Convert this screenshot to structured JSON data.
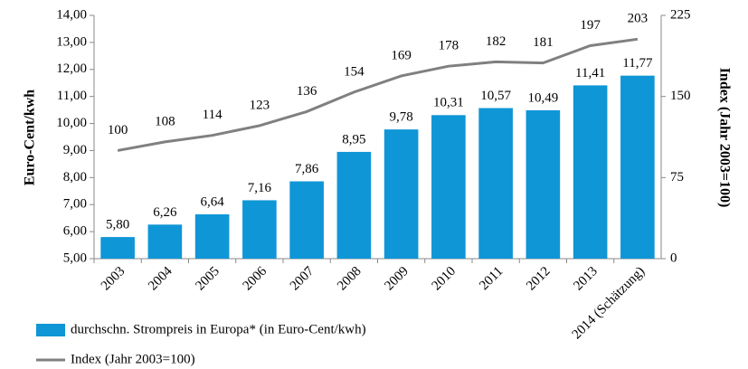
{
  "chart_data": {
    "type": "bar",
    "ylabel": "Euro-Cent/kwh",
    "y2label": "Index (Jahr 2003=100)",
    "categories": [
      "2003",
      "2004",
      "2005",
      "2006",
      "2007",
      "2008",
      "2009",
      "2010",
      "2011",
      "2012",
      "2013",
      "2014 (Schätzung)"
    ],
    "ylim": [
      5,
      14
    ],
    "yticks": [
      {
        "value": 5,
        "label": "5,00"
      },
      {
        "value": 6,
        "label": "6,00"
      },
      {
        "value": 7,
        "label": "7,00"
      },
      {
        "value": 8,
        "label": "8,00"
      },
      {
        "value": 9,
        "label": "9,00"
      },
      {
        "value": 10,
        "label": "10,00"
      },
      {
        "value": 11,
        "label": "11,00"
      },
      {
        "value": 12,
        "label": "12,00"
      },
      {
        "value": 13,
        "label": "13,00"
      },
      {
        "value": 14,
        "label": "14,00"
      }
    ],
    "y2lim": [
      0,
      225
    ],
    "y2ticks": [
      0,
      75,
      150,
      225
    ],
    "series": [
      {
        "name": "durchschn. Strompreis in Europa* (in Euro-Cent/kwh)",
        "type": "bar",
        "color": "#0f96d6",
        "values": [
          5.8,
          6.26,
          6.64,
          7.16,
          7.86,
          8.95,
          9.78,
          10.31,
          10.57,
          10.49,
          11.41,
          11.77
        ],
        "value_labels": [
          "5,80",
          "6,26",
          "6,64",
          "7,16",
          "7,86",
          "8,95",
          "9,78",
          "10,31",
          "10,57",
          "10,49",
          "11,41",
          "11,77"
        ]
      },
      {
        "name": "Index (Jahr 2003=100)",
        "type": "line",
        "axis": "y2",
        "color": "#808080",
        "values": [
          100,
          108,
          114,
          123,
          136,
          154,
          169,
          178,
          182,
          181,
          197,
          203
        ]
      }
    ]
  }
}
